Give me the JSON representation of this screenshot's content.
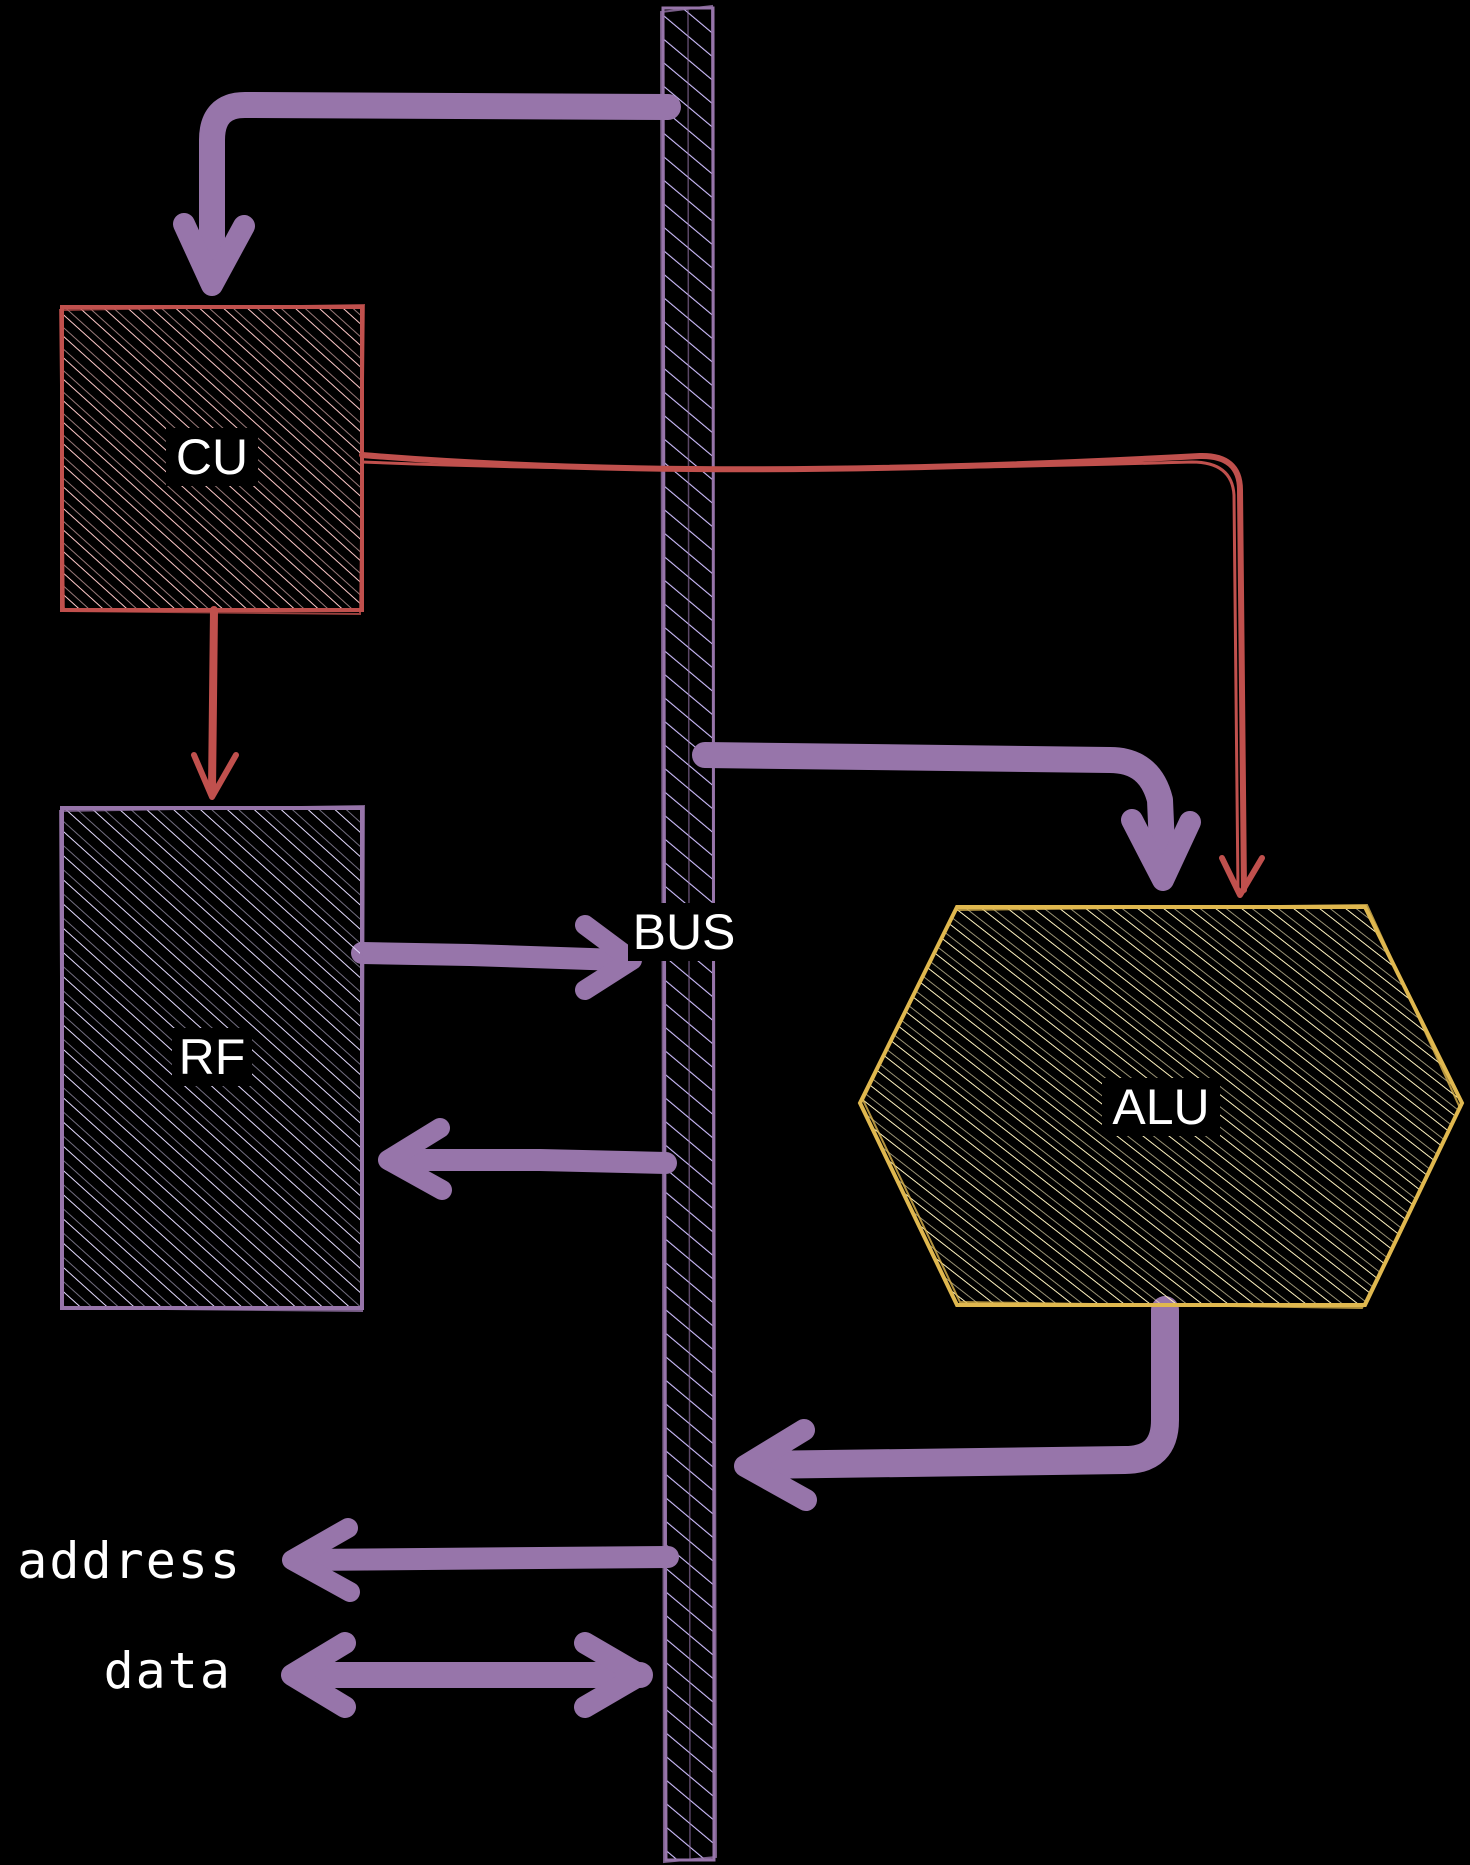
{
  "colors": {
    "background": "#000000",
    "bus": "#9775aa",
    "bus_hatch": "#d0bfff",
    "control": "#c0504d",
    "control_hatch": "#ffc9c9",
    "rf": "#9775aa",
    "rf_hatch": "#e5dbff",
    "alu": "#e0b84f",
    "alu_hatch": "#fff3bf",
    "label_text": "#ffffff",
    "label_bg": "#000000"
  },
  "blocks": {
    "cu": {
      "label": "CU"
    },
    "rf": {
      "label": "RF"
    },
    "alu": {
      "label": "ALU"
    },
    "bus": {
      "label": "BUS"
    }
  },
  "ports": {
    "address": "address",
    "data": "data"
  }
}
